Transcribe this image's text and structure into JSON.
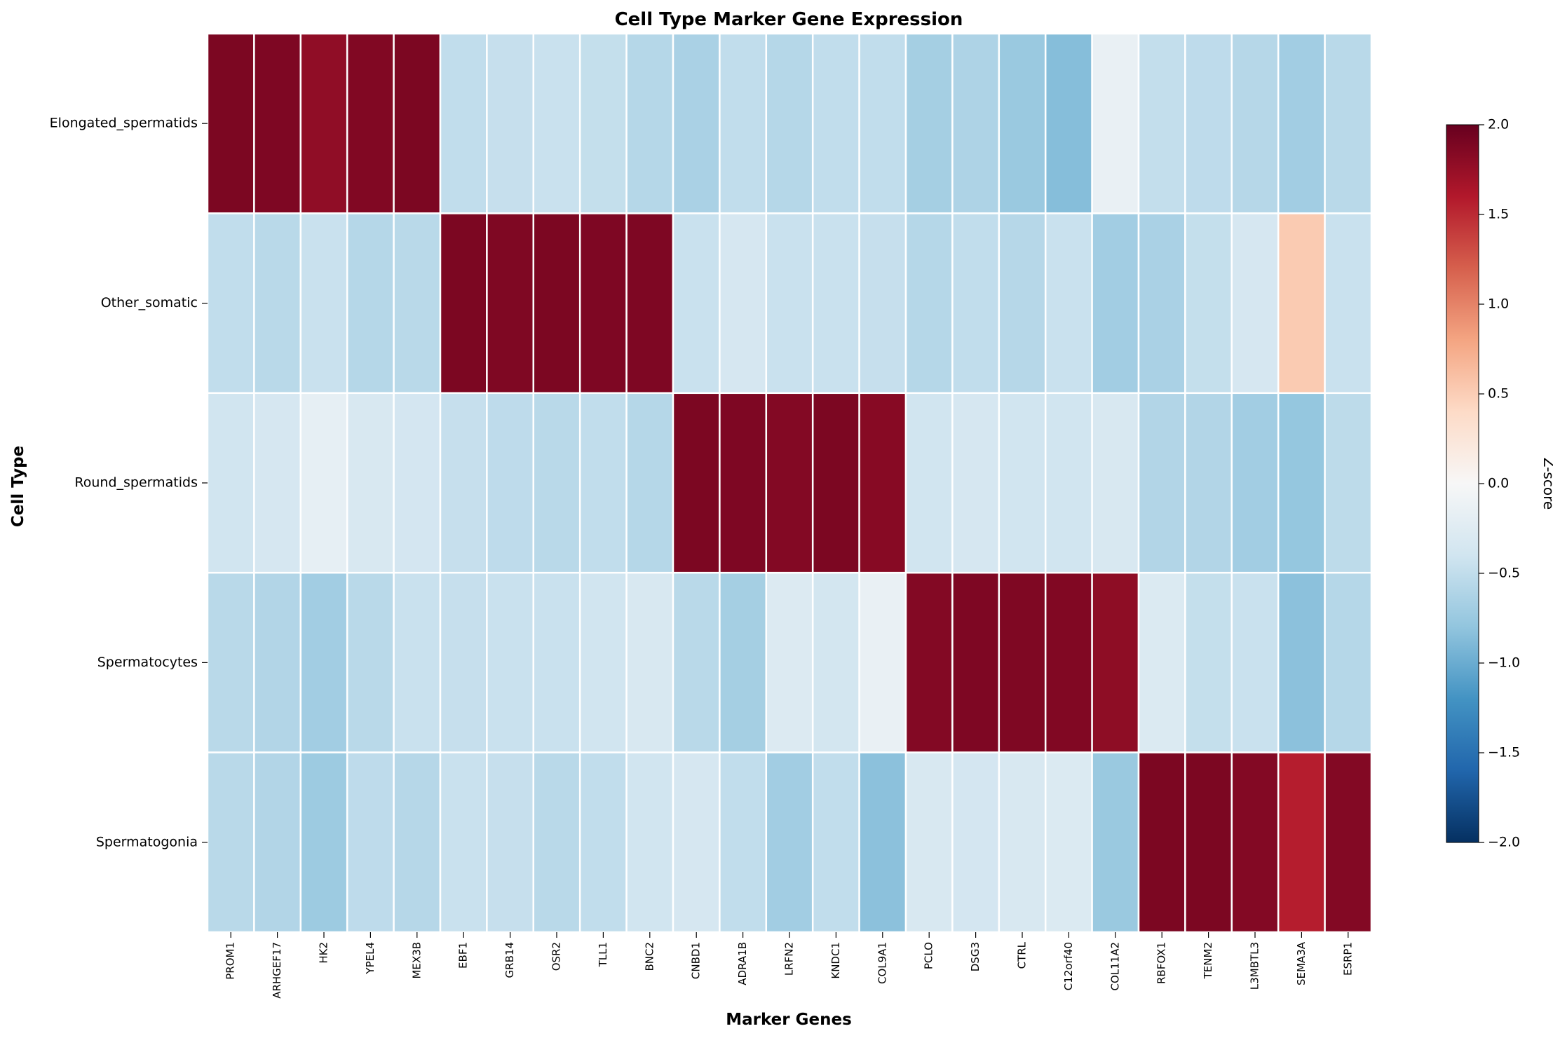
{
  "chart_data": {
    "type": "heatmap",
    "title": "Cell Type Marker Gene Expression",
    "xlabel": "Marker Genes",
    "ylabel": "Cell Type",
    "colorbar_label": "Z-score",
    "vmin": -2,
    "vmax": 2,
    "colorbar_ticks": [
      "2.0",
      "1.5",
      "1.0",
      "0.5",
      "0.0",
      "−0.5",
      "−1.0",
      "−1.5",
      "−2.0"
    ],
    "colormap": [
      "#053061",
      "#2166ac",
      "#4393c3",
      "#92c5de",
      "#d1e5f0",
      "#f7f7f7",
      "#fddbc7",
      "#f4a582",
      "#d6604d",
      "#b2182b",
      "#67001f"
    ],
    "x": [
      "PROM1",
      "ARHGEF17",
      "HK2",
      "YPEL4",
      "MEX3B",
      "EBF1",
      "GRB14",
      "OSR2",
      "TLL1",
      "BNC2",
      "CNBD1",
      "ADRA1B",
      "LRFN2",
      "KNDC1",
      "COL9A1",
      "PCLO",
      "DSG3",
      "CTRL",
      "C12orf40",
      "COL11A2",
      "RBFOX1",
      "TENM2",
      "L3MBTL3",
      "SEMA3A",
      "ESRP1"
    ],
    "y": [
      "Elongated_spermatids",
      "Other_somatic",
      "Round_spermatids",
      "Spermatocytes",
      "Spermatogonia"
    ],
    "z": [
      [
        1.89,
        1.88,
        1.78,
        1.86,
        1.89,
        -0.5,
        -0.47,
        -0.45,
        -0.48,
        -0.58,
        -0.65,
        -0.5,
        -0.58,
        -0.5,
        -0.5,
        -0.68,
        -0.62,
        -0.75,
        -0.86,
        -0.15,
        -0.49,
        -0.52,
        -0.57,
        -0.7,
        -0.55
      ],
      [
        -0.5,
        -0.55,
        -0.45,
        -0.58,
        -0.55,
        1.89,
        1.87,
        1.89,
        1.88,
        1.88,
        -0.45,
        -0.35,
        -0.45,
        -0.45,
        -0.47,
        -0.58,
        -0.5,
        -0.57,
        -0.45,
        -0.7,
        -0.65,
        -0.48,
        -0.35,
        0.52,
        -0.45
      ],
      [
        -0.4,
        -0.35,
        -0.18,
        -0.33,
        -0.37,
        -0.47,
        -0.52,
        -0.55,
        -0.5,
        -0.58,
        1.89,
        1.88,
        1.85,
        1.89,
        1.83,
        -0.4,
        -0.35,
        -0.4,
        -0.4,
        -0.33,
        -0.6,
        -0.6,
        -0.7,
        -0.78,
        -0.53
      ],
      [
        -0.55,
        -0.6,
        -0.7,
        -0.55,
        -0.45,
        -0.47,
        -0.45,
        -0.45,
        -0.4,
        -0.33,
        -0.55,
        -0.68,
        -0.28,
        -0.38,
        -0.15,
        1.85,
        1.88,
        1.87,
        1.86,
        1.79,
        -0.3,
        -0.48,
        -0.45,
        -0.83,
        -0.58
      ],
      [
        -0.55,
        -0.6,
        -0.73,
        -0.52,
        -0.57,
        -0.45,
        -0.47,
        -0.55,
        -0.5,
        -0.4,
        -0.35,
        -0.5,
        -0.7,
        -0.5,
        -0.83,
        -0.33,
        -0.37,
        -0.33,
        -0.3,
        -0.75,
        1.89,
        1.89,
        1.85,
        1.57,
        1.85
      ]
    ]
  }
}
